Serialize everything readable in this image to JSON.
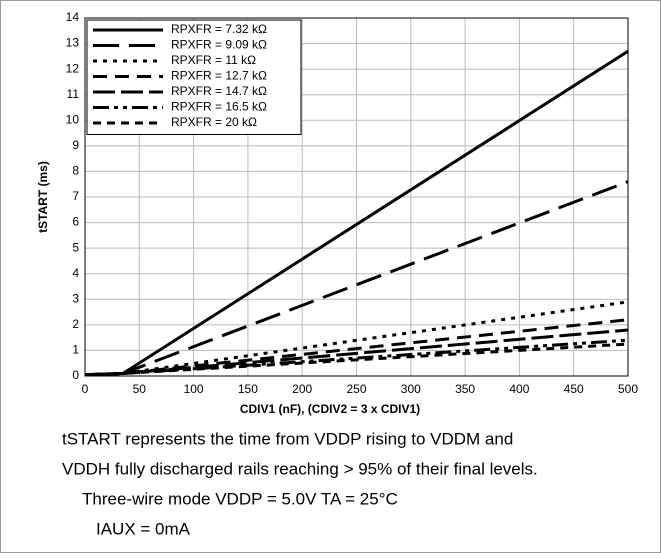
{
  "chart_data": {
    "type": "line",
    "xlabel": "CDIV1 (nF), (CDIV2 = 3 x CDIV1)",
    "ylabel": "tSTART (ms)",
    "x": [
      0,
      35,
      500
    ],
    "series": [
      {
        "name": "RPXFR = 7.32 kΩ",
        "color": "#000000",
        "dash": "none",
        "values": [
          0.05,
          0.1,
          12.7
        ]
      },
      {
        "name": "RPXFR = 9.09 kΩ",
        "color": "#000000",
        "dash": "26 10",
        "values": [
          0.05,
          0.1,
          7.6
        ]
      },
      {
        "name": "RPXFR = 11 kΩ",
        "color": "#000000",
        "dash": "4 6",
        "values": [
          0.05,
          0.1,
          2.9
        ]
      },
      {
        "name": "RPXFR = 12.7 kΩ",
        "color": "#000000",
        "dash": "14 8",
        "values": [
          0.05,
          0.1,
          2.2
        ]
      },
      {
        "name": "RPXFR = 14.7 kΩ",
        "color": "#000000",
        "dash": "22 6",
        "values": [
          0.05,
          0.1,
          1.8
        ]
      },
      {
        "name": "RPXFR = 16.5 kΩ",
        "color": "#000000",
        "dash": "16 5 4 5 4 5",
        "values": [
          0.05,
          0.1,
          1.4
        ]
      },
      {
        "name": "RPXFR = 20 kΩ",
        "color": "#000000",
        "dash": "8 6",
        "values": [
          0.05,
          0.1,
          1.25
        ]
      }
    ],
    "xlim": [
      0,
      500
    ],
    "xticks": [
      0,
      50,
      100,
      150,
      200,
      250,
      300,
      350,
      400,
      450,
      500
    ],
    "ylim": [
      0,
      14
    ],
    "yticks": [
      0,
      1,
      2,
      3,
      4,
      5,
      6,
      7,
      8,
      9,
      10,
      11,
      12,
      13,
      14
    ],
    "grid": true,
    "legend": "upper left",
    "notes": [
      "tSTART represents the time from VDDP rising to VDDM and",
      "VDDH fully discharged rails reaching > 95% of their final levels.",
      "Three-wire mode        VDDP = 5.0V        TA = 25°C",
      "IAUX = 0mA"
    ]
  }
}
